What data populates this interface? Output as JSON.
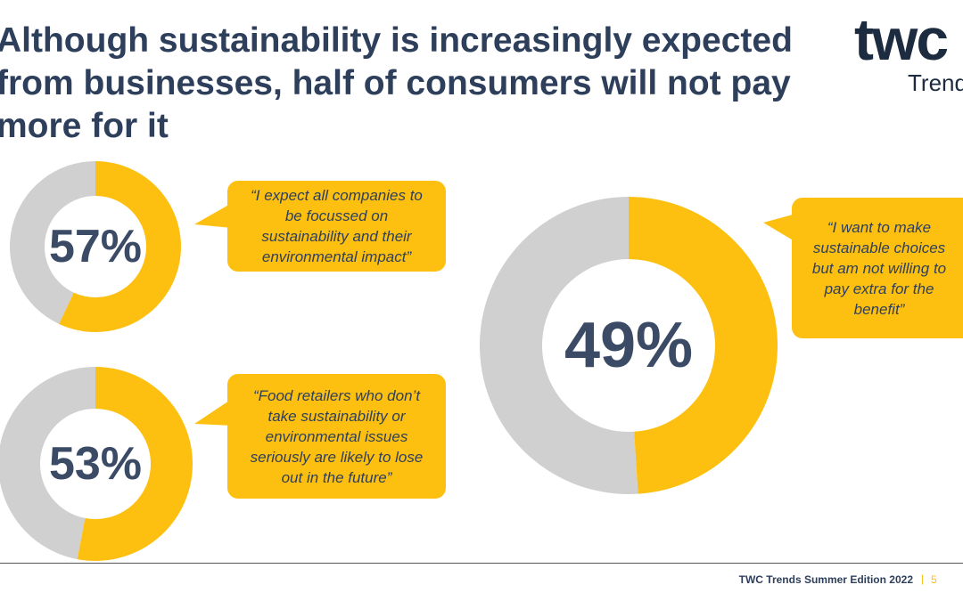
{
  "slide": {
    "title": "Although sustainability is increasingly expected from businesses, half of consumers will not pay more for it",
    "logo_main": "twc",
    "logo_sub": "Trends",
    "footer": "TWC Trends Summer Edition 2022",
    "page": "5"
  },
  "chart_data": [
    {
      "type": "donut",
      "values": [
        57,
        43
      ],
      "colors": [
        "#fdc010",
        "#d0d0d0"
      ],
      "value_labels": [
        "57%",
        null
      ],
      "quote": "“I expect all companies to be focussed on sustainability and their environmental impact”"
    },
    {
      "type": "donut",
      "values": [
        53,
        47
      ],
      "colors": [
        "#fdc010",
        "#d0d0d0"
      ],
      "value_labels": [
        "53%",
        null
      ],
      "quote": "“Food retailers who don’t take sustainability or environmental issues seriously are likely to lose out in the future”"
    },
    {
      "type": "donut",
      "values": [
        49,
        51
      ],
      "colors": [
        "#fdc010",
        "#d0d0d0"
      ],
      "value_labels": [
        "49%",
        null
      ],
      "quote": "“I want to make sustainable choices but am not willing to pay extra for the benefit”"
    }
  ]
}
